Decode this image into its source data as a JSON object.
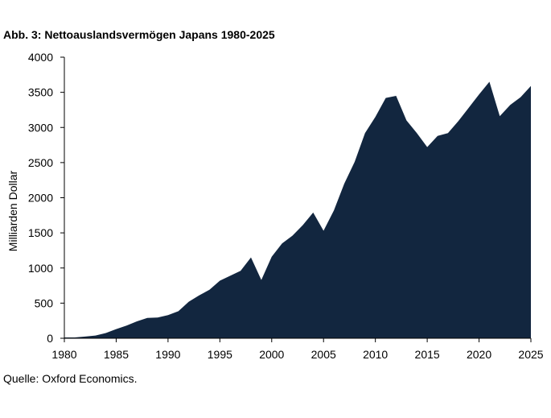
{
  "chart_data": {
    "type": "area",
    "title": "Abb. 3: Nettoauslandsvermögen Japans 1980-2025",
    "ylabel": "Milliarden Dollar",
    "xlabel": "",
    "source": "Quelle: Oxford Economics.",
    "xlim": [
      1980,
      2025
    ],
    "ylim": [
      0,
      4000
    ],
    "x_ticks": [
      1980,
      1985,
      1990,
      1995,
      2000,
      2005,
      2010,
      2015,
      2020,
      2025
    ],
    "y_ticks": [
      0,
      500,
      1000,
      1500,
      2000,
      2500,
      3000,
      3500,
      4000
    ],
    "grid": false,
    "legend": "none",
    "fill_color": "#12263f",
    "series": [
      {
        "x": [
          1980,
          1981,
          1982,
          1983,
          1984,
          1985,
          1986,
          1987,
          1988,
          1989,
          1990,
          1991,
          1992,
          1993,
          1994,
          1995,
          1996,
          1997,
          1998,
          1999,
          2000,
          2001,
          2002,
          2003,
          2004,
          2005,
          2006,
          2007,
          2008,
          2009,
          2010,
          2011,
          2012,
          2013,
          2014,
          2015,
          2016,
          2017,
          2018,
          2019,
          2020,
          2021,
          2022,
          2023,
          2024,
          2025
        ],
        "values": [
          12,
          11,
          25,
          38,
          75,
          130,
          180,
          240,
          290,
          295,
          330,
          385,
          520,
          610,
          690,
          820,
          890,
          960,
          1150,
          830,
          1160,
          1350,
          1460,
          1610,
          1790,
          1530,
          1820,
          2200,
          2510,
          2920,
          3150,
          3420,
          3450,
          3100,
          2920,
          2720,
          2880,
          2920,
          3090,
          3280,
          3470,
          3650,
          3160,
          3320,
          3430,
          3590
        ]
      }
    ]
  }
}
